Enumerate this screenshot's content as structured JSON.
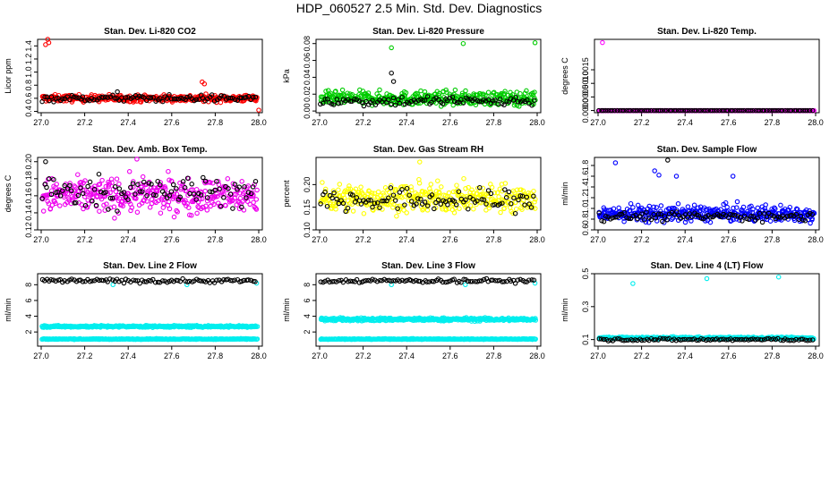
{
  "title": "HDP_060527  2.5 Min. Std. Dev. Diagnostics",
  "chart_data": [
    {
      "type": "scatter",
      "title": "Stan. Dev. Li-820 CO2",
      "ylabel": "Licor ppm",
      "x_range": [
        27.0,
        28.0
      ],
      "xticks": [
        "27.0",
        "27.2",
        "27.4",
        "27.6",
        "27.8",
        "28.0"
      ],
      "ylim": [
        0.38,
        1.5
      ],
      "yticks": [
        "0.4",
        "0.6",
        "0.8",
        "1.0",
        "1.2",
        "1.4"
      ],
      "series": [
        {
          "name": "red",
          "color": "#ff0000",
          "mean": 0.6,
          "spread": 0.05,
          "outliers": [
            [
              27.03,
              1.5
            ],
            [
              27.035,
              1.45
            ],
            [
              27.02,
              1.42
            ],
            [
              27.74,
              0.85
            ],
            [
              27.75,
              0.82
            ],
            [
              28.0,
              0.42
            ]
          ]
        },
        {
          "name": "black",
          "color": "#000000",
          "mean": 0.6,
          "spread": 0.05,
          "outliers": [
            [
              27.35,
              0.7
            ]
          ]
        }
      ]
    },
    {
      "type": "scatter",
      "title": "Stan. Dev. Li-820 Pressure",
      "ylabel": "kPa",
      "x_range": [
        27.0,
        28.0
      ],
      "xticks": [
        "27.0",
        "27.2",
        "27.4",
        "27.6",
        "27.8",
        "28.0"
      ],
      "ylim": [
        -0.002,
        0.085
      ],
      "yticks": [
        "0.00",
        "0.02",
        "0.04",
        "0.06",
        "0.08"
      ],
      "series": [
        {
          "name": "green",
          "color": "#00cc00",
          "mean": 0.015,
          "spread": 0.008,
          "outliers": [
            [
              27.33,
              0.075
            ],
            [
              27.66,
              0.08
            ],
            [
              27.99,
              0.081
            ]
          ]
        },
        {
          "name": "black",
          "color": "#000000",
          "mean": 0.012,
          "spread": 0.006,
          "outliers": [
            [
              27.33,
              0.045
            ],
            [
              27.34,
              0.035
            ]
          ]
        }
      ]
    },
    {
      "type": "scatter",
      "title": "Stan. Dev. Li-820 Temp.",
      "ylabel": "degrees C",
      "x_range": [
        27.0,
        28.0
      ],
      "xticks": [
        "27.0",
        "27.2",
        "27.4",
        "27.6",
        "27.8",
        "28.0"
      ],
      "ylim": [
        -8e-05,
        0.00262
      ],
      "yticks": [
        "0.0000",
        "0.0005",
        "0.0010",
        "0.0015"
      ],
      "series": [
        {
          "name": "magenta",
          "color": "#ff00ff",
          "mean": 0.0,
          "spread": 0.0,
          "outliers": [
            [
              27.02,
              0.0025
            ]
          ]
        },
        {
          "name": "black",
          "color": "#000000",
          "mean": 0.0,
          "spread": 0.0,
          "outliers": []
        }
      ]
    },
    {
      "type": "scatter",
      "title": "Stan. Dev. Amb. Box Temp.",
      "ylabel": "degrees C",
      "x_range": [
        27.0,
        28.0
      ],
      "xticks": [
        "27.0",
        "27.2",
        "27.4",
        "27.6",
        "27.8",
        "28.0"
      ],
      "ylim": [
        0.12,
        0.205
      ],
      "yticks": [
        "0.12",
        "0.14",
        "0.16",
        "0.18",
        "0.20"
      ],
      "series": [
        {
          "name": "magenta",
          "color": "#ee00ee",
          "mean": 0.16,
          "spread": 0.02,
          "outliers": [
            [
              27.44,
              0.203
            ]
          ]
        },
        {
          "name": "black",
          "color": "#000000",
          "mean": 0.165,
          "spread": 0.018,
          "outliers": [
            [
              27.02,
              0.2
            ]
          ]
        }
      ]
    },
    {
      "type": "scatter",
      "title": "Stan. Dev. Gas Stream RH",
      "ylabel": "percent",
      "x_range": [
        27.0,
        28.0
      ],
      "xticks": [
        "27.0",
        "27.2",
        "27.4",
        "27.6",
        "27.8",
        "28.0"
      ],
      "ylim": [
        0.1,
        0.26
      ],
      "yticks": [
        "0.10",
        "0.15",
        "0.20"
      ],
      "series": [
        {
          "name": "yellow",
          "color": "#ffff00",
          "mean": 0.17,
          "spread": 0.03,
          "outliers": [
            [
              27.46,
              0.25
            ]
          ]
        },
        {
          "name": "black",
          "color": "#000000",
          "mean": 0.165,
          "spread": 0.025,
          "outliers": []
        }
      ]
    },
    {
      "type": "scatter",
      "title": "Stan. Dev. Sample Flow",
      "ylabel": "ml/min",
      "x_range": [
        27.0,
        28.0
      ],
      "xticks": [
        "27.0",
        "27.2",
        "27.4",
        "27.6",
        "27.8",
        "28.0"
      ],
      "ylim": [
        0.6,
        1.95
      ],
      "yticks": [
        "0.6",
        "0.8",
        "1.0",
        "1.2",
        "1.4",
        "1.6",
        "1.8"
      ],
      "series": [
        {
          "name": "blue",
          "color": "#0000ff",
          "mean": 0.9,
          "spread": 0.15,
          "outliers": [
            [
              27.08,
              1.85
            ],
            [
              27.26,
              1.7
            ],
            [
              27.62,
              1.6
            ],
            [
              27.28,
              1.62
            ],
            [
              27.36,
              1.6
            ]
          ]
        },
        {
          "name": "black",
          "color": "#000000",
          "mean": 0.85,
          "spread": 0.08,
          "outliers": [
            [
              27.32,
              1.9
            ]
          ]
        }
      ]
    },
    {
      "type": "scatter",
      "title": "Stan. Dev. Line 2 Flow",
      "ylabel": "ml/min",
      "x_range": [
        27.0,
        28.0
      ],
      "xticks": [
        "27.0",
        "27.2",
        "27.4",
        "27.6",
        "27.8",
        "28.0"
      ],
      "ylim": [
        0.2,
        9.4
      ],
      "yticks": [
        "2",
        "4",
        "6",
        "8"
      ],
      "series": [
        {
          "name": "cyan-upper",
          "color": "#00eeee",
          "mean": 2.7,
          "spread": 0.12,
          "outliers": [
            [
              27.33,
              8.0
            ],
            [
              27.67,
              8.0
            ],
            [
              27.99,
              8.2
            ]
          ]
        },
        {
          "name": "cyan-lower",
          "color": "#00eeee",
          "mean": 1.1,
          "spread": 0.05,
          "outliers": []
        },
        {
          "name": "black",
          "color": "#000000",
          "mean": 8.5,
          "spread": 0.25,
          "outliers": []
        }
      ]
    },
    {
      "type": "scatter",
      "title": "Stan. Dev. Line 3 Flow",
      "ylabel": "ml/min",
      "x_range": [
        27.0,
        28.0
      ],
      "xticks": [
        "27.0",
        "27.2",
        "27.4",
        "27.6",
        "27.8",
        "28.0"
      ],
      "ylim": [
        0.2,
        9.4
      ],
      "yticks": [
        "2",
        "4",
        "6",
        "8"
      ],
      "series": [
        {
          "name": "cyan-upper",
          "color": "#00eeee",
          "mean": 3.6,
          "spread": 0.2,
          "outliers": [
            [
              27.33,
              8.0
            ],
            [
              27.67,
              8.0
            ],
            [
              27.99,
              8.2
            ]
          ]
        },
        {
          "name": "cyan-lower",
          "color": "#00eeee",
          "mean": 1.1,
          "spread": 0.05,
          "outliers": []
        },
        {
          "name": "black",
          "color": "#000000",
          "mean": 8.5,
          "spread": 0.25,
          "outliers": []
        }
      ]
    },
    {
      "type": "scatter",
      "title": "Stan. Dev. Line 4 (LT) Flow",
      "ylabel": "ml/min",
      "x_range": [
        27.0,
        28.0
      ],
      "xticks": [
        "27.0",
        "27.2",
        "27.4",
        "27.6",
        "27.8",
        "28.0"
      ],
      "ylim": [
        0.06,
        0.5
      ],
      "yticks": [
        "0.1",
        "0.3",
        "0.5"
      ],
      "series": [
        {
          "name": "cyan",
          "color": "#00eeee",
          "mean": 0.11,
          "spread": 0.006,
          "outliers": [
            [
              27.16,
              0.44
            ],
            [
              27.5,
              0.47
            ],
            [
              27.83,
              0.48
            ]
          ]
        },
        {
          "name": "black",
          "color": "#000000",
          "mean": 0.1,
          "spread": 0.008,
          "outliers": []
        }
      ]
    }
  ]
}
